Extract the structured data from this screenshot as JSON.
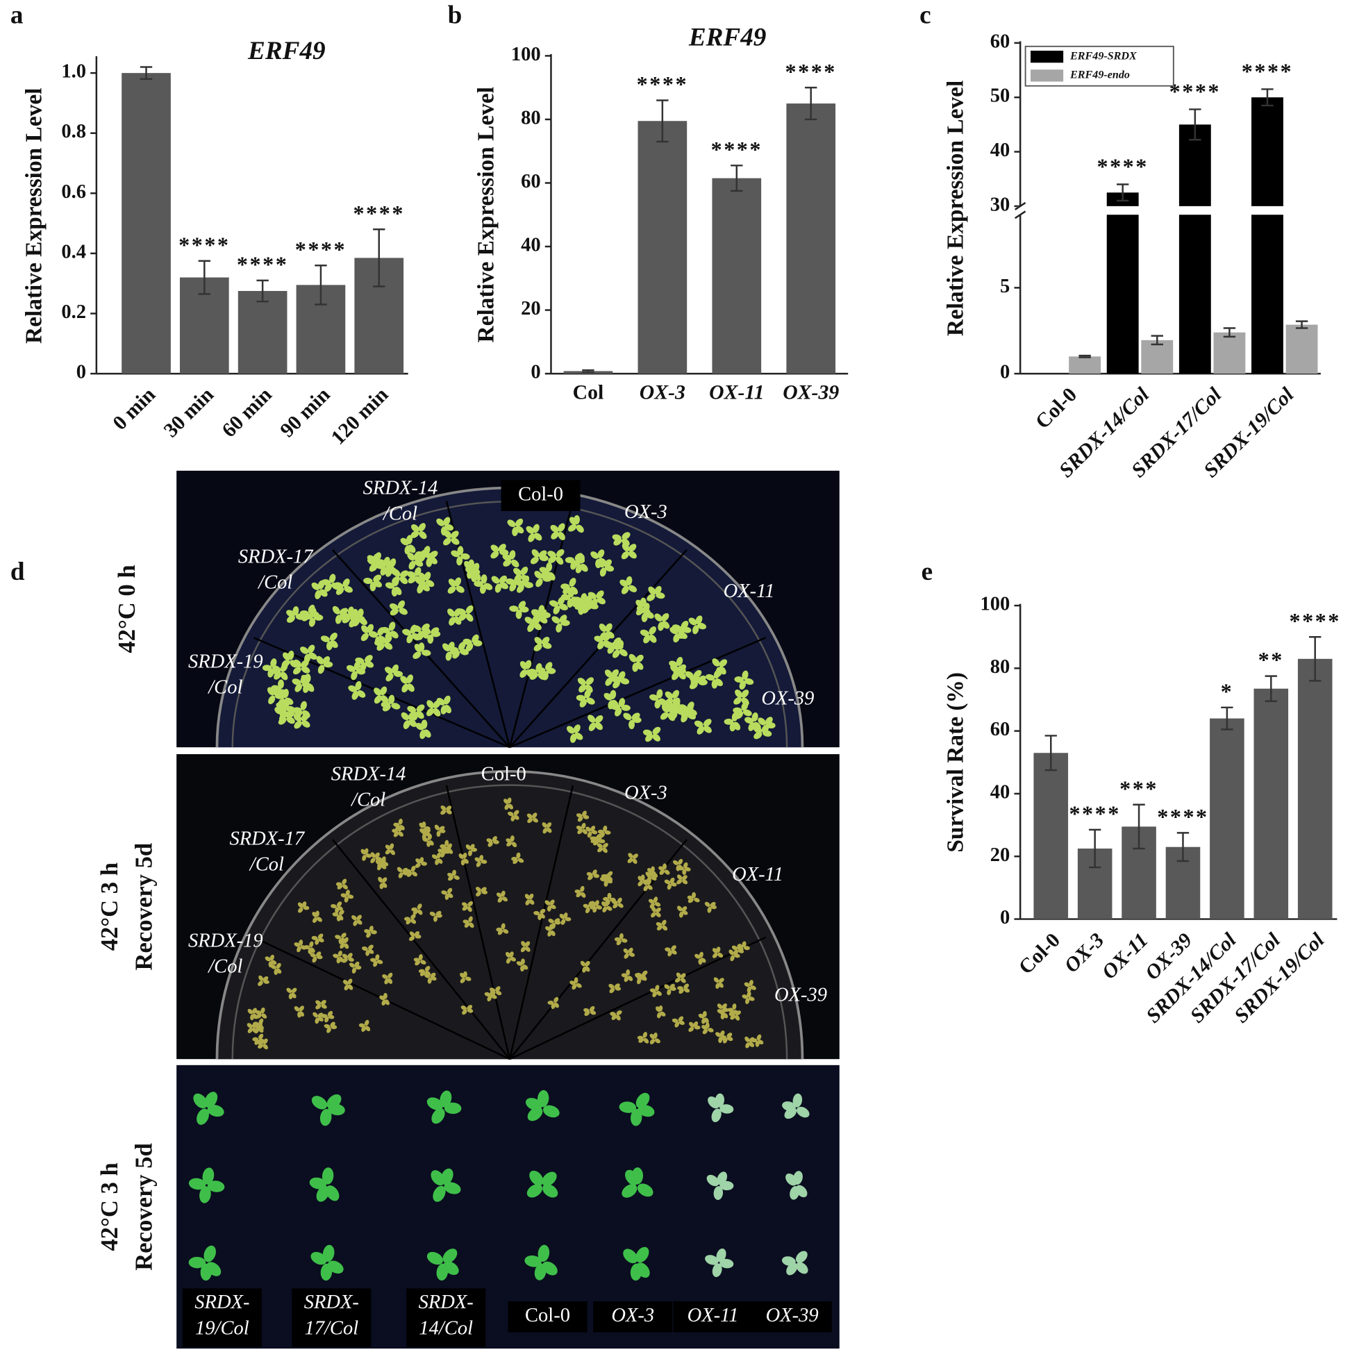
{
  "chart_data": [
    {
      "type": "bar",
      "panel": "a",
      "title": "ERF49",
      "ylabel": "Relative Expression Level",
      "categories": [
        "0 min",
        "30 min",
        "60 min",
        "90 min",
        "120 min"
      ],
      "values": [
        1.0,
        0.32,
        0.275,
        0.295,
        0.385
      ],
      "errors": [
        0.02,
        0.055,
        0.035,
        0.065,
        0.095
      ],
      "annotations": [
        null,
        "****",
        "****",
        "****",
        "****"
      ],
      "color": "#595959",
      "ylim": [
        0,
        1.05
      ],
      "yticks": [
        0,
        0.2,
        0.4,
        0.6,
        0.8,
        {
          "value": 1,
          "label": "1.0"
        }
      ]
    },
    {
      "type": "bar",
      "panel": "b",
      "title": "ERF49",
      "ylabel": "Relative Expression Level",
      "categories": [
        "Col",
        "OX-3",
        "OX-11",
        "OX-39"
      ],
      "values": [
        0.8,
        79.5,
        61.5,
        85
      ],
      "errors": [
        0.3,
        6.5,
        4,
        5
      ],
      "annotations": [
        null,
        "****",
        "****",
        "****"
      ],
      "color": "#595959",
      "ylim": [
        0,
        100
      ],
      "yticks": [
        0,
        20,
        40,
        60,
        80,
        100
      ]
    },
    {
      "type": "grouped_bar",
      "panel": "c",
      "ylabel": "Relative Expression Level",
      "categories": [
        "Col-0",
        "SRDX-14/Col",
        "SRDX-17/Col",
        "SRDX-19/Col"
      ],
      "series": [
        {
          "name": "ERF49-SRDX",
          "color": "#000000",
          "values": [
            null,
            32.5,
            45,
            50
          ],
          "errors": [
            null,
            1.5,
            2.8,
            1.5
          ],
          "annotations": [
            null,
            "****",
            "****",
            "****"
          ]
        },
        {
          "name": "ERF49-endo",
          "color": "#a6a6a6",
          "values": [
            1.0,
            1.95,
            2.4,
            2.85
          ],
          "errors": [
            0.05,
            0.25,
            0.25,
            0.2
          ]
        }
      ],
      "ylim": [
        0,
        60
      ],
      "axis_break": [
        9.25,
        30
      ],
      "yticks": [
        0,
        5,
        30,
        40,
        50,
        60
      ],
      "legend": "upper left"
    },
    {
      "type": "bar",
      "panel": "e",
      "ylabel": "Survival Rate (%)",
      "categories": [
        "Col-0",
        "OX-3",
        "OX-11",
        "OX-39",
        "SRDX-14/Col",
        "SRDX-17/Col",
        "SRDX-19/Col"
      ],
      "values": [
        53,
        22.5,
        29.5,
        23,
        64,
        73.5,
        83
      ],
      "errors": [
        5.5,
        6,
        7,
        4.5,
        3.5,
        4,
        7
      ],
      "annotations": [
        null,
        "****",
        "***",
        "****",
        "*",
        "**",
        "****"
      ],
      "color": "#595959",
      "ylim": [
        0,
        100
      ],
      "yticks": [
        0,
        20,
        40,
        60,
        80,
        100
      ]
    }
  ],
  "panel_d": {
    "panel": "d",
    "photos": [
      {
        "side_label": [
          "42°C 0 h"
        ],
        "labels": [
          [
            "SRDX-14",
            "/Col"
          ],
          [
            "Col-0"
          ],
          [
            "OX-3"
          ],
          [
            "SRDX-17",
            "/Col"
          ],
          [
            "OX-11"
          ],
          [
            "SRDX-19",
            "/Col"
          ],
          [
            "OX-39"
          ]
        ]
      },
      {
        "side_label": [
          "42°C 3 h",
          "Recovery 5d"
        ],
        "labels": [
          [
            "SRDX-14",
            "/Col"
          ],
          [
            "Col-0"
          ],
          [
            "OX-3"
          ],
          [
            "SRDX-17",
            "/Col"
          ],
          [
            "OX-11"
          ],
          [
            "SRDX-19",
            "/Col"
          ],
          [
            "OX-39"
          ]
        ]
      },
      {
        "side_label": [
          "42°C 3 h",
          "Recovery 5d"
        ],
        "labels": [
          [
            "SRDX-",
            "19/Col"
          ],
          [
            "SRDX-",
            "17/Col"
          ],
          [
            "SRDX-",
            "14/Col"
          ],
          [
            "Col-0"
          ],
          [
            "OX-3"
          ],
          [
            "OX-11"
          ],
          [
            "OX-39"
          ]
        ]
      }
    ]
  }
}
